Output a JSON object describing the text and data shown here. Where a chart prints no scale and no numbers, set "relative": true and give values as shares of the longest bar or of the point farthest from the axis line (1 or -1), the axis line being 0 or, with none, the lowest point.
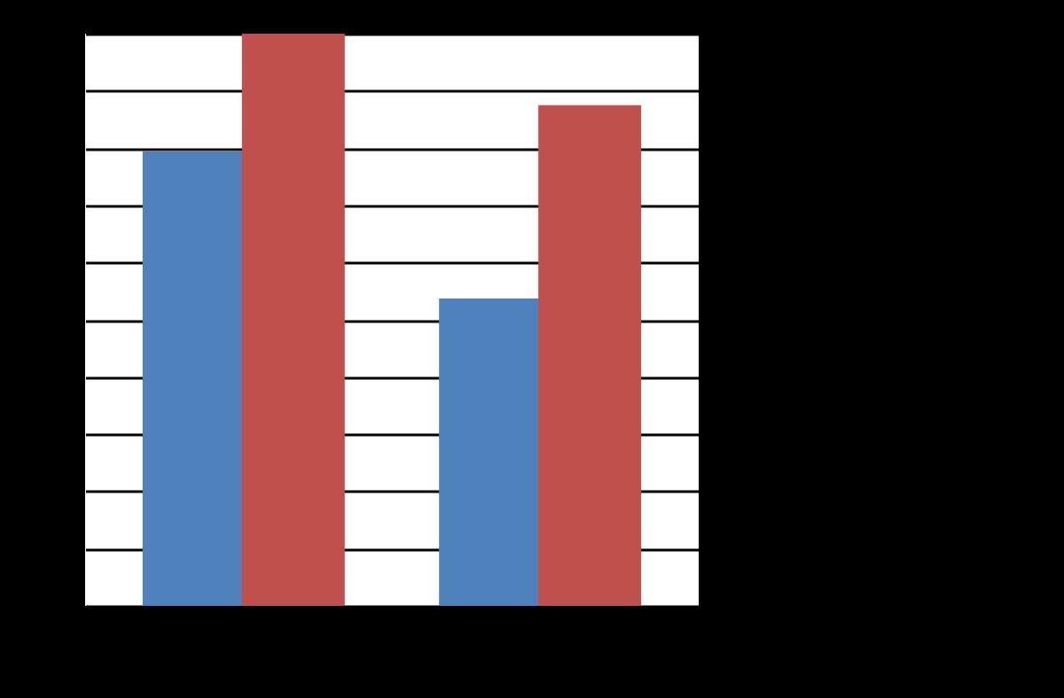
{
  "chart_data": {
    "type": "bar",
    "relative": true,
    "categories": [
      null,
      null
    ],
    "grid": "y",
    "series": [
      {
        "color": "#4f81bd",
        "values": [
          0.794,
          0.537
        ]
      },
      {
        "color": "#c0504d",
        "values": [
          1,
          0.875
        ]
      }
    ]
  }
}
